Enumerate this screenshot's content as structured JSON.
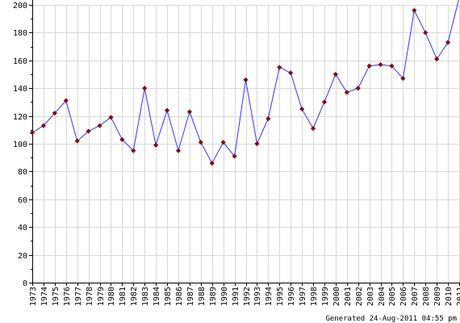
{
  "chart_data": {
    "type": "line",
    "title": "",
    "xlabel": "",
    "ylabel": "",
    "x": [
      1973,
      1974,
      1975,
      1976,
      1977,
      1978,
      1979,
      1980,
      1981,
      1982,
      1983,
      1984,
      1985,
      1986,
      1987,
      1988,
      1989,
      1990,
      1991,
      1992,
      1993,
      1994,
      1995,
      1996,
      1997,
      1998,
      1999,
      2000,
      2001,
      2002,
      2003,
      2004,
      2005,
      2006,
      2007,
      2008,
      2009,
      2010,
      2011
    ],
    "series": [
      {
        "values": [
          108,
          113,
          122,
          131,
          102,
          109,
          113,
          119,
          103,
          95,
          140,
          99,
          124,
          95,
          123,
          101,
          86,
          101,
          91,
          146,
          100,
          118,
          155,
          151,
          125,
          111,
          130,
          150,
          137,
          140,
          156,
          157,
          156,
          147,
          196,
          180,
          161,
          173,
          205
        ]
      }
    ],
    "ylim": [
      0,
      200
    ],
    "yticks": [
      0,
      20,
      40,
      60,
      80,
      100,
      120,
      140,
      160,
      180,
      200
    ],
    "grid": true,
    "colors": {
      "line": "#3333ff",
      "marker": "#990000",
      "grid": "#d8d8d8",
      "axis": "#000000"
    }
  },
  "footer": {
    "generated": "Generated 24-Aug-2011 04:55 pm"
  }
}
